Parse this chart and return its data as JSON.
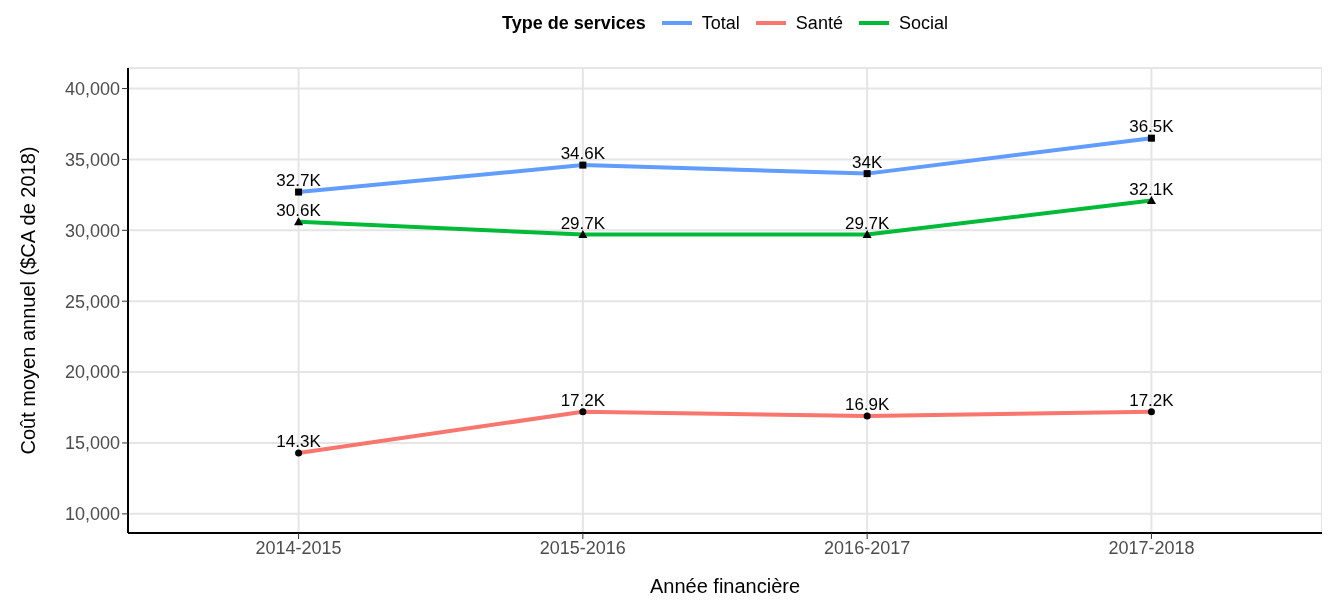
{
  "chart_data": {
    "type": "line",
    "xlabel": "Année financière",
    "ylabel": "Coût moyen annuel ($CA de 2018)",
    "legend_title": "Type de services",
    "legend": "top",
    "grid": true,
    "categories": [
      "2014-2015",
      "2015-2016",
      "2016-2017",
      "2017-2018"
    ],
    "ylim": [
      8650,
      41450
    ],
    "yticks": [
      {
        "value": 10000,
        "label": "10,000"
      },
      {
        "value": 15000,
        "label": "15,000"
      },
      {
        "value": 20000,
        "label": "20,000"
      },
      {
        "value": 25000,
        "label": "25,000"
      },
      {
        "value": 30000,
        "label": "30,000"
      },
      {
        "value": 35000,
        "label": "35,000"
      },
      {
        "value": 40000,
        "label": "40,000"
      }
    ],
    "series": [
      {
        "name": "Total",
        "color": "#619cff",
        "marker": "square",
        "values": [
          32700,
          34600,
          34000,
          36500
        ],
        "value_labels": [
          "32.7K",
          "34.6K",
          "34K",
          "36.5K"
        ]
      },
      {
        "name": "Santé",
        "color": "#f8766d",
        "marker": "circle",
        "values": [
          14300,
          17200,
          16900,
          17200
        ],
        "value_labels": [
          "14.3K",
          "17.2K",
          "16.9K",
          "17.2K"
        ]
      },
      {
        "name": "Social",
        "color": "#00ba38",
        "marker": "triangle",
        "values": [
          30600,
          29700,
          29700,
          32100
        ],
        "value_labels": [
          "30.6K",
          "29.7K",
          "29.7K",
          "32.1K"
        ]
      }
    ]
  }
}
